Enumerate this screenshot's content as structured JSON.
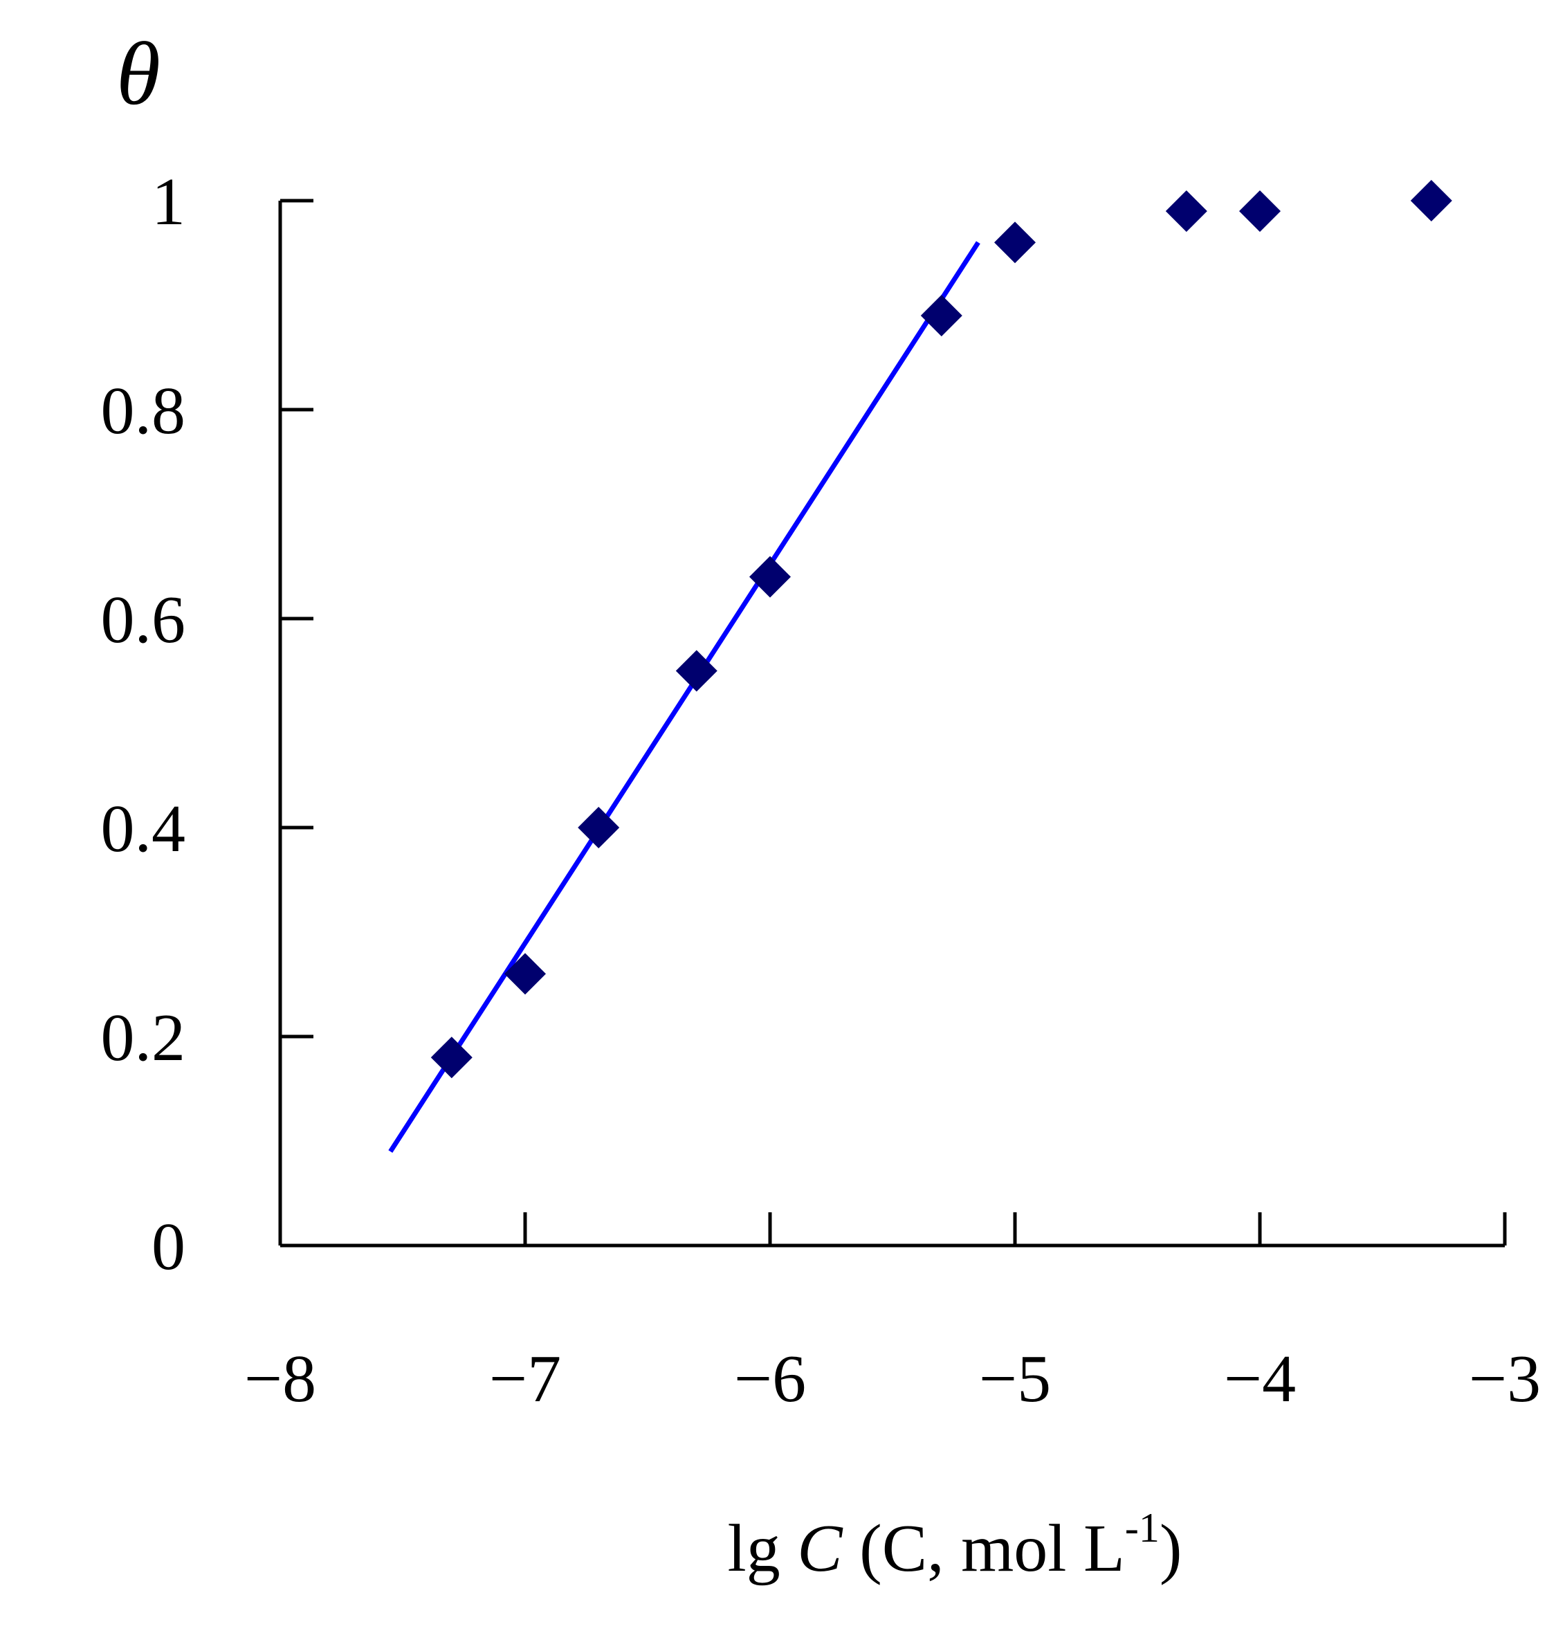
{
  "chart_data": {
    "type": "scatter",
    "title": "",
    "ylabel": "θ",
    "xlabel": {
      "prefix": "lg ",
      "var": "C",
      "paren_open": " (C, mol L",
      "sup": "-1",
      "paren_close": ")"
    },
    "xlim": [
      -8,
      -3
    ],
    "ylim": [
      0,
      1
    ],
    "x_ticks": [
      {
        "value": -8,
        "label": "−8"
      },
      {
        "value": -7,
        "label": "−7"
      },
      {
        "value": -6,
        "label": "−6"
      },
      {
        "value": -5,
        "label": "−5"
      },
      {
        "value": -4,
        "label": "−4"
      },
      {
        "value": -3,
        "label": "−3"
      }
    ],
    "y_ticks": [
      {
        "value": 0,
        "label": "0"
      },
      {
        "value": 0.2,
        "label": "0.2"
      },
      {
        "value": 0.4,
        "label": "0.4"
      },
      {
        "value": 0.6,
        "label": "0.6"
      },
      {
        "value": 0.8,
        "label": "0.8"
      },
      {
        "value": 1,
        "label": "1"
      }
    ],
    "grid": false,
    "series": [
      {
        "marker": "diamond",
        "color": "#00006e",
        "points": [
          {
            "x": -7.3,
            "y": 0.18
          },
          {
            "x": -7.0,
            "y": 0.26
          },
          {
            "x": -6.7,
            "y": 0.4
          },
          {
            "x": -6.3,
            "y": 0.55
          },
          {
            "x": -6.0,
            "y": 0.64
          },
          {
            "x": -5.3,
            "y": 0.89
          },
          {
            "x": -5.0,
            "y": 0.96
          },
          {
            "x": -4.3,
            "y": 0.99
          },
          {
            "x": -4.0,
            "y": 0.99
          },
          {
            "x": -3.3,
            "y": 1.0
          }
        ]
      }
    ],
    "fit_line": {
      "color": "#0000ff",
      "x": [
        -7.55,
        -5.15
      ],
      "y": [
        0.09,
        0.96
      ]
    }
  }
}
